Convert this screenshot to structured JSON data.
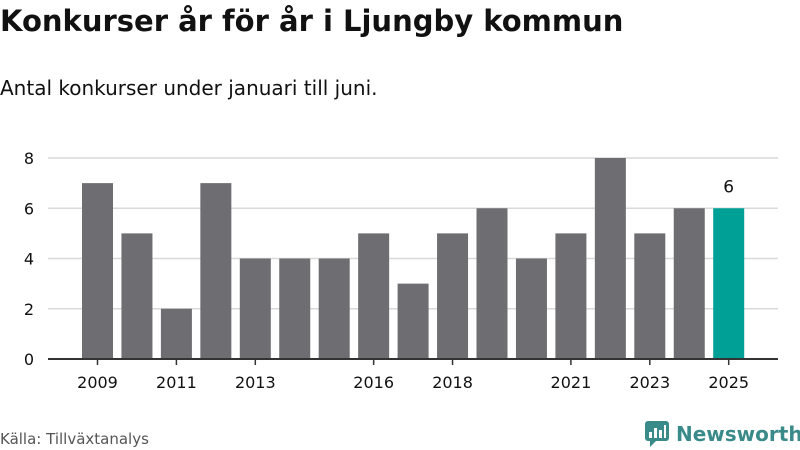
{
  "header": {
    "title": "Konkurser år för år i Ljungby kommun",
    "subtitle": "Antal konkurser under januari till juni."
  },
  "footer": {
    "source": "Källa: Tillväxtanalys",
    "brand": "Newsworthy",
    "brand_icon": "newsworthy-logo-icon"
  },
  "colors": {
    "bar": "#6d6d72",
    "highlight": "#00a096",
    "grid": "#d9d9d9",
    "axis": "#333333",
    "text": "#111111",
    "brand": "#3a8a8a"
  },
  "chart_data": {
    "type": "bar",
    "categories": [
      "2009",
      "2010",
      "2011",
      "2012",
      "2013",
      "2014",
      "2015",
      "2016",
      "2017",
      "2018",
      "2019",
      "2020",
      "2021",
      "2022",
      "2023",
      "2024",
      "2025"
    ],
    "values": [
      7,
      5,
      2,
      7,
      4,
      4,
      4,
      5,
      3,
      5,
      6,
      4,
      5,
      8,
      5,
      6,
      6
    ],
    "tick_labels": [
      "2009",
      "2011",
      "2013",
      "2016",
      "2018",
      "2021",
      "2023",
      "2025"
    ],
    "yticks": [
      0,
      2,
      4,
      6,
      8
    ],
    "ylim": [
      0,
      8
    ],
    "highlight_category": "2025",
    "data_labels": [
      {
        "category": "2025",
        "text": "6"
      }
    ],
    "grid": true,
    "xlabel": "",
    "ylabel": ""
  }
}
